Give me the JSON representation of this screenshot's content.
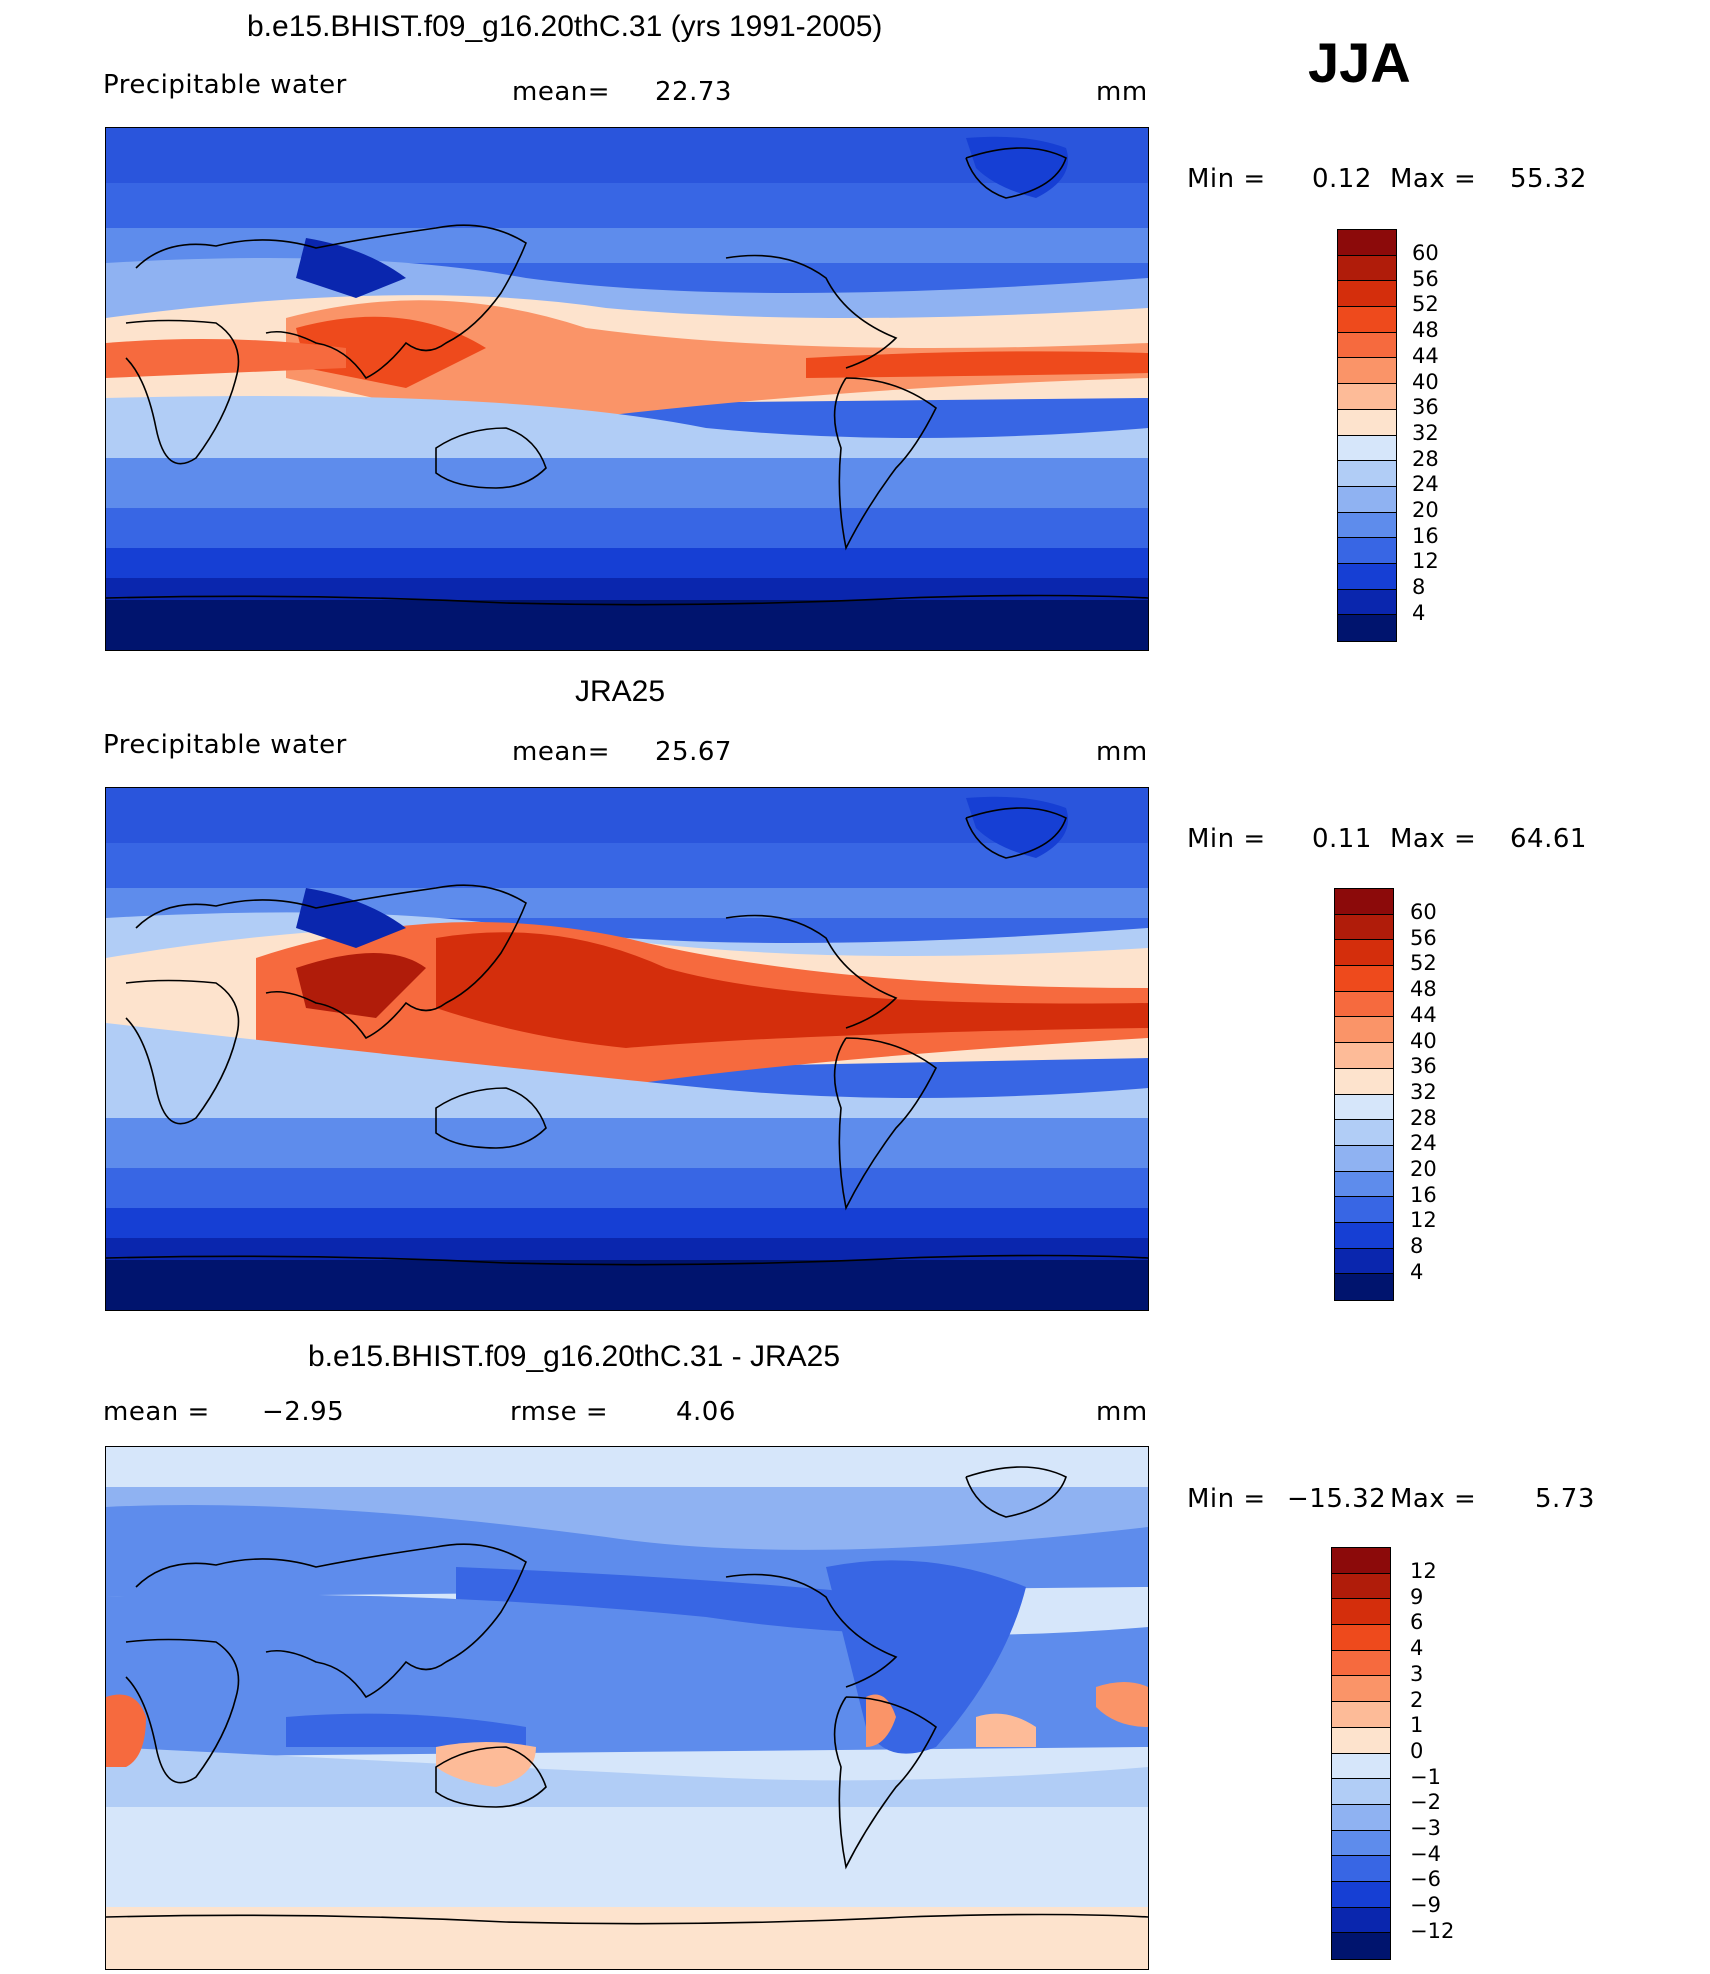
{
  "season": "JJA",
  "units": "mm",
  "panels": [
    {
      "title": "b.e15.BHIST.f09_g16.20thC.31 (yrs 1991-2005)",
      "variable": "Precipitable water",
      "mean_label": "mean=",
      "mean": "22.73",
      "units": "mm",
      "min_label": "Min =",
      "min": "0.12",
      "max_label": "Max =",
      "max": "55.32"
    },
    {
      "title": "JRA25",
      "variable": "Precipitable water",
      "mean_label": "mean=",
      "mean": "25.67",
      "units": "mm",
      "min_label": "Min =",
      "min": "0.11",
      "max_label": "Max =",
      "max": "64.61"
    },
    {
      "title": "b.e15.BHIST.f09_g16.20thC.31 - JRA25",
      "mean_label": "mean =",
      "mean": "−2.95",
      "rmse_label": "rmse =",
      "rmse": "4.06",
      "units": "mm",
      "min_label": "Min =",
      "min": "−15.32",
      "max_label": "Max =",
      "max": "5.73"
    }
  ],
  "colorbars": {
    "abs": {
      "labels": [
        "60",
        "56",
        "52",
        "48",
        "44",
        "40",
        "36",
        "32",
        "28",
        "24",
        "20",
        "16",
        "12",
        "8",
        "4"
      ],
      "colors": [
        "#8c0a0a",
        "#b01c0a",
        "#d42e0c",
        "#ee4a1c",
        "#f66a3e",
        "#fa9468",
        "#fdbb98",
        "#fde3cd",
        "#d6e6fa",
        "#b1cdf6",
        "#8fb2f2",
        "#5e8cec",
        "#3866e4",
        "#163fd4",
        "#0a26ae",
        "#00146e"
      ]
    },
    "diff": {
      "labels": [
        "12",
        "9",
        "6",
        "4",
        "3",
        "2",
        "1",
        "0",
        "−1",
        "−2",
        "−3",
        "−4",
        "−6",
        "−9",
        "−12"
      ],
      "colors": [
        "#8c0a0a",
        "#b01c0a",
        "#d42e0c",
        "#ee4a1c",
        "#f66a3e",
        "#fa9468",
        "#fdbb98",
        "#fde3cd",
        "#d6e6fa",
        "#b1cdf6",
        "#8fb2f2",
        "#5e8cec",
        "#3866e4",
        "#163fd4",
        "#0a26ae",
        "#00146e"
      ]
    }
  },
  "chart_data": [
    {
      "type": "heatmap",
      "title": "b.e15.BHIST.f09_g16.20thC.31 (yrs 1991-2005)",
      "subtitle": "Precipitable water",
      "mean": 22.73,
      "min": 0.12,
      "max": 55.32,
      "units": "mm",
      "contour_levels": [
        4,
        8,
        12,
        16,
        20,
        24,
        28,
        32,
        36,
        40,
        44,
        48,
        52,
        56,
        60
      ],
      "lat_bands": [
        {
          "lat": 75,
          "value": 8
        },
        {
          "lat": 60,
          "value": 12
        },
        {
          "lat": 45,
          "value": 20
        },
        {
          "lat": 30,
          "value": 30
        },
        {
          "lat": 15,
          "value": 42
        },
        {
          "lat": 7,
          "value": 48
        },
        {
          "lat": 0,
          "value": 38
        },
        {
          "lat": -10,
          "value": 28
        },
        {
          "lat": -20,
          "value": 22
        },
        {
          "lat": -30,
          "value": 16
        },
        {
          "lat": -45,
          "value": 10
        },
        {
          "lat": -60,
          "value": 6
        },
        {
          "lat": -75,
          "value": 2
        }
      ]
    },
    {
      "type": "heatmap",
      "title": "JRA25",
      "subtitle": "Precipitable water",
      "mean": 25.67,
      "min": 0.11,
      "max": 64.61,
      "units": "mm",
      "contour_levels": [
        4,
        8,
        12,
        16,
        20,
        24,
        28,
        32,
        36,
        40,
        44,
        48,
        52,
        56,
        60
      ],
      "lat_bands": [
        {
          "lat": 75,
          "value": 10
        },
        {
          "lat": 60,
          "value": 14
        },
        {
          "lat": 45,
          "value": 22
        },
        {
          "lat": 30,
          "value": 34
        },
        {
          "lat": 15,
          "value": 46
        },
        {
          "lat": 7,
          "value": 52
        },
        {
          "lat": 0,
          "value": 44
        },
        {
          "lat": -10,
          "value": 32
        },
        {
          "lat": -20,
          "value": 24
        },
        {
          "lat": -30,
          "value": 18
        },
        {
          "lat": -45,
          "value": 12
        },
        {
          "lat": -60,
          "value": 7
        },
        {
          "lat": -75,
          "value": 2
        }
      ]
    },
    {
      "type": "heatmap",
      "title": "b.e15.BHIST.f09_g16.20thC.31 - JRA25",
      "mean": -2.95,
      "rmse": 4.06,
      "min": -15.32,
      "max": 5.73,
      "units": "mm",
      "contour_levels": [
        -12,
        -9,
        -6,
        -4,
        -3,
        -2,
        -1,
        0,
        1,
        2,
        3,
        4,
        6,
        9,
        12
      ],
      "lat_bands": [
        {
          "lat": 75,
          "value": -1
        },
        {
          "lat": 60,
          "value": -3
        },
        {
          "lat": 45,
          "value": -4
        },
        {
          "lat": 30,
          "value": -5
        },
        {
          "lat": 15,
          "value": -6
        },
        {
          "lat": 7,
          "value": -4
        },
        {
          "lat": 0,
          "value": -5
        },
        {
          "lat": -10,
          "value": -4
        },
        {
          "lat": -20,
          "value": -3
        },
        {
          "lat": -30,
          "value": -2
        },
        {
          "lat": -45,
          "value": -1
        },
        {
          "lat": -60,
          "value": -0.5
        },
        {
          "lat": -75,
          "value": 0.5
        }
      ]
    }
  ]
}
